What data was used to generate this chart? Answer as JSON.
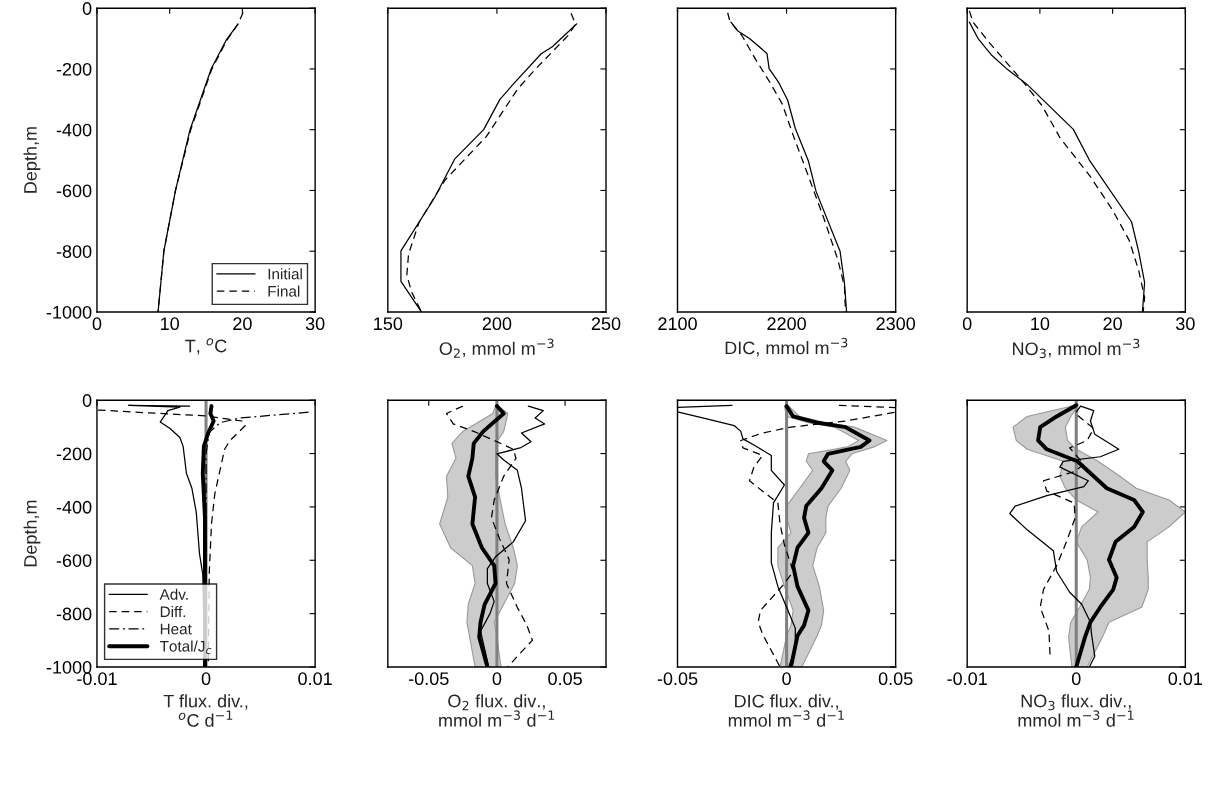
{
  "chart_data": [
    {
      "type": "line",
      "orientation": "horizontal",
      "xlabel": "T, $^{o}$C",
      "ylabel": "Depth,m",
      "xlim": [
        0,
        30
      ],
      "xticks": [
        0,
        10,
        20,
        30
      ],
      "ylim": [
        -1000,
        0
      ],
      "yticks": [
        -1000,
        -800,
        -600,
        -400,
        -200,
        0
      ],
      "legend": "lower right",
      "series": [
        {
          "name": "Initial",
          "color": "#000000",
          "line_style": "solid",
          "x": [
            -52,
            -104,
            -200,
            -400,
            -600,
            -800,
            -1000
          ],
          "values": [
            19.4,
            17.8,
            15.7,
            12.8,
            10.8,
            9.2,
            8.4
          ]
        },
        {
          "name": "Final",
          "color": "#000000",
          "line_style": "dashed",
          "x": [
            -14,
            -52,
            -104,
            -200,
            -400,
            -600,
            -800,
            -1000
          ],
          "values": [
            20.1,
            19.4,
            17.9,
            15.8,
            12.9,
            10.8,
            9.2,
            8.4
          ]
        }
      ]
    },
    {
      "type": "line",
      "orientation": "horizontal",
      "xlabel": "O$_{2}$, mmol m$^{−3}$",
      "xlim": [
        150,
        250
      ],
      "xticks": [
        150,
        200,
        250
      ],
      "ylim": [
        -1000,
        0
      ],
      "yticks": [
        -1000,
        -800,
        -600,
        -400,
        -200,
        0
      ],
      "tick_labels": "x",
      "series": [
        {
          "color": "#000000",
          "line_style": "solid",
          "x": [
            -52,
            -127,
            -150,
            -249,
            -301,
            -399,
            -497,
            -624,
            -799,
            -899,
            -1000
          ],
          "values": [
            236.5,
            225.4,
            220.3,
            207.6,
            201.3,
            194,
            180.6,
            171.4,
            156,
            156,
            165.4
          ]
        },
        {
          "color": "#000000",
          "line_style": "dashed",
          "x": [
            -17,
            -52,
            -87,
            -202,
            -266,
            -422,
            -566,
            -705,
            -809,
            -879,
            -936,
            -1000
          ],
          "values": [
            234,
            236,
            233,
            217.5,
            209.5,
            195.2,
            176.2,
            164.3,
            159.5,
            158.7,
            161,
            165.4
          ]
        }
      ]
    },
    {
      "type": "line",
      "orientation": "horizontal",
      "xlabel": "DIC, mmol m$^{−3}$",
      "xlim": [
        2100,
        2300
      ],
      "xticks": [
        2100,
        2200,
        2300
      ],
      "ylim": [
        -1000,
        0
      ],
      "yticks": [
        -1000,
        -800,
        -600,
        -400,
        -200,
        0
      ],
      "tick_labels": "x",
      "series": [
        {
          "color": "#000000",
          "line_style": "solid",
          "x": [
            -46,
            -74,
            -100,
            -149,
            -199,
            -246,
            -303,
            -396,
            -503,
            -603,
            -800,
            -903,
            -1000
          ],
          "values": [
            2149,
            2155,
            2166,
            2182,
            2184,
            2193,
            2201,
            2208,
            2220,
            2227,
            2249,
            2253,
            2255
          ]
        },
        {
          "color": "#000000",
          "line_style": "dashed",
          "x": [
            -15,
            -43,
            -90,
            -171,
            -246,
            -315,
            -428,
            -553,
            -690,
            -828,
            -915,
            -1000
          ],
          "values": [
            2146,
            2148,
            2159,
            2172,
            2185,
            2196,
            2207,
            2220,
            2234,
            2247,
            2253,
            2254
          ]
        }
      ]
    },
    {
      "type": "line",
      "orientation": "horizontal",
      "xlabel": "NO$_{3}$, mmol m$^{−3}$",
      "xlim": [
        0,
        30
      ],
      "xticks": [
        0,
        10,
        20,
        30
      ],
      "ylim": [
        -1000,
        0
      ],
      "yticks": [
        -1000,
        -800,
        -600,
        -400,
        -200,
        0
      ],
      "tick_labels": "x",
      "series": [
        {
          "color": "#000000",
          "line_style": "solid",
          "x": [
            -46,
            -100,
            -153,
            -203,
            -250,
            -399,
            -500,
            -703,
            -803,
            -903,
            -1000
          ],
          "values": [
            0.3,
            1.5,
            3.3,
            5.6,
            8.2,
            14.6,
            16.8,
            22.6,
            23.6,
            24.4,
            24.1
          ]
        },
        {
          "color": "#000000",
          "line_style": "dashed",
          "x": [
            -9,
            -46,
            -115,
            -234,
            -321,
            -428,
            -553,
            -665,
            -765,
            -865,
            -953,
            -1000
          ],
          "values": [
            0.3,
            0.8,
            3.1,
            7.4,
            10.3,
            12.8,
            16.9,
            20,
            22.3,
            23.6,
            24.4,
            24.2
          ]
        }
      ]
    },
    {
      "type": "line",
      "orientation": "horizontal",
      "xlabel": "T flux. div.,\n$^{o}$C d$^{−1}$",
      "ylabel": "Depth,m",
      "xlim": [
        -0.01,
        0.01
      ],
      "xticks": [
        -0.01,
        0,
        0.01
      ],
      "ylim": [
        -1000,
        0
      ],
      "yticks": [
        -1000,
        -800,
        -600,
        -400,
        -200,
        0
      ],
      "legend": "lower left",
      "ref_lines": [
        {
          "axis": "x",
          "value": 0,
          "color": "#808080"
        }
      ],
      "series": [
        {
          "name": "Adv.",
          "color": "#000000",
          "line_style": "solid",
          "x": [
            -22,
            -19,
            -26,
            -39,
            -82,
            -106,
            -140,
            -173,
            -274,
            -330,
            -419,
            -575,
            -653,
            -1000
          ],
          "values": [
            -0.0015,
            -0.0071,
            -0.0024,
            -0.0035,
            -0.0042,
            -0.0033,
            -0.0024,
            -0.0021,
            -0.0018,
            -0.0013,
            -0.0009,
            -0.0006,
            -0.0003,
            -0.0001
          ]
        },
        {
          "name": "Diff.",
          "color": "#000000",
          "line_style": "dashed",
          "x": [
            -37,
            -59,
            -78,
            -95,
            -151,
            -184,
            -240,
            -352,
            -464,
            -642,
            -1000
          ],
          "values": [
            -0.0099,
            0,
            0.0033,
            0.0036,
            0.0022,
            0.0017,
            0.0014,
            0.0008,
            0.0005,
            0.0003,
            0.0002
          ]
        },
        {
          "name": "Heat",
          "color": "#000000",
          "line_style": "dashdot",
          "x": [
            -45,
            -67,
            -84,
            -120,
            -200,
            -1000
          ],
          "values": [
            0.0094,
            0.0031,
            0.0013,
            0.0003,
            0,
            0
          ]
        },
        {
          "name": "Total/J$_{c}$",
          "color": "#000000",
          "line_style": "solid",
          "x": [
            -22,
            -50,
            -78,
            -123,
            -173,
            -274,
            -441,
            -665,
            -1000
          ],
          "values": [
            0.0005,
            0.0004,
            0.0007,
            0.0002,
            -0.0002,
            -0.0003,
            -0.0001,
            -0.0001,
            -0.0001
          ]
        }
      ]
    },
    {
      "type": "line",
      "orientation": "horizontal",
      "xlabel": "O$_{2}$ flux. div.,\nmmol m$^{−3}$ d$^{−1}$",
      "xlim": [
        -0.08,
        0.08
      ],
      "xticks": [
        -0.05,
        0,
        0.05
      ],
      "ylim": [
        -1000,
        0
      ],
      "yticks": [
        -1000,
        -800,
        -600,
        -400,
        -200,
        0
      ],
      "tick_labels": "x",
      "ref_lines": [
        {
          "axis": "x",
          "value": 0,
          "color": "#808080"
        }
      ],
      "series": [
        {
          "color": "#000000",
          "line_style": "solid",
          "x": [
            -22,
            -39,
            -67,
            -89,
            -123,
            -156,
            -179,
            -201,
            -224,
            -263,
            -330,
            -452,
            -531,
            -587,
            -631,
            -687,
            -754,
            -799,
            -866,
            -1000
          ],
          "values": [
            0.023,
            0.034,
            0.028,
            0.035,
            0.018,
            0.025,
            0.017,
            0,
            0.005,
            0.015,
            0.018,
            0.021,
            0.012,
            -0.001,
            -0.007,
            -0.007,
            -0.002,
            -0.005,
            -0.012,
            -0.006
          ]
        },
        {
          "color": "#000000",
          "line_style": "dashed",
          "x": [
            -22,
            -50,
            -89,
            -117,
            -151,
            -184,
            -218,
            -285,
            -374,
            -441,
            -520,
            -598,
            -687,
            -777,
            -844,
            -900,
            -960,
            -1000
          ],
          "values": [
            -0.025,
            -0.037,
            -0.032,
            -0.017,
            -0.002,
            0.012,
            0.014,
            0.005,
            -0.002,
            -0.004,
            0.002,
            0.009,
            0.007,
            0.015,
            0.022,
            0.026,
            0.015,
            0.008
          ]
        },
        {
          "color": "#000000",
          "line_style": "solid",
          "x": [
            -22,
            -50,
            -117,
            -162,
            -218,
            -285,
            -363,
            -464,
            -553,
            -620,
            -687,
            -765,
            -832,
            -888,
            -1000
          ],
          "values": [
            0,
            0.005,
            -0.01,
            -0.017,
            -0.018,
            -0.021,
            -0.016,
            -0.018,
            -0.011,
            -0.002,
            -0.001,
            -0.009,
            -0.012,
            -0.013,
            -0.007
          ],
          "lower": [
            -0.001,
            -0.003,
            -0.025,
            -0.033,
            -0.03,
            -0.037,
            -0.036,
            -0.042,
            -0.034,
            -0.018,
            -0.016,
            -0.021,
            -0.022,
            -0.02,
            -0.016
          ],
          "upper": [
            0.001,
            0.008,
            0.005,
            -0.001,
            -0.001,
            -0.001,
            0.002,
            0.006,
            0.012,
            0.015,
            0.013,
            0.005,
            -0.002,
            0,
            0.003
          ]
        }
      ]
    },
    {
      "type": "line",
      "orientation": "horizontal",
      "xlabel": "DIC flux. div.,\nmmol m$^{−3}$ d$^{−1}$",
      "xlim": [
        -0.05,
        0.05
      ],
      "xticks": [
        -0.05,
        0,
        0.05
      ],
      "ylim": [
        -1000,
        0
      ],
      "yticks": [
        -1000,
        -800,
        -600,
        -400,
        -200,
        0
      ],
      "tick_labels": "x",
      "ref_lines": [
        {
          "axis": "x",
          "value": 0,
          "color": "#808080"
        }
      ],
      "series": [
        {
          "color": "#000000",
          "line_style": "solid",
          "x": [
            -19,
            -27,
            -44,
            -67,
            -95,
            -117,
            -145,
            -168,
            -207,
            -263,
            -318,
            -385,
            -497,
            -609,
            -698,
            -776,
            -855,
            -930,
            -1000
          ],
          "values": [
            -0.025,
            -0.05,
            -0.05,
            -0.038,
            -0.024,
            -0.021,
            -0.02,
            -0.015,
            -0.007,
            -0.007,
            -0.001,
            -0.006,
            -0.007,
            -0.007,
            -0.004,
            0,
            0.004,
            0.004,
            0.001
          ]
        },
        {
          "color": "#000000",
          "line_style": "dashed",
          "x": [
            -19,
            -28,
            -45,
            -78,
            -101,
            -123,
            -151,
            -179,
            -207,
            -251,
            -302,
            -341,
            -385,
            -464,
            -542,
            -642,
            -687,
            -743,
            -788,
            -832,
            -877,
            -1000
          ],
          "values": [
            0.024,
            0.05,
            0.05,
            0.027,
            0.002,
            -0.011,
            -0.021,
            -0.02,
            -0.011,
            -0.015,
            -0.017,
            -0.011,
            -0.004,
            -0.003,
            -0.001,
            0.003,
            -0.001,
            -0.007,
            -0.012,
            -0.013,
            -0.011,
            -0.003
          ]
        },
        {
          "color": "#000000",
          "line_style": "solid",
          "x": [
            -22,
            -61,
            -84,
            -101,
            -151,
            -175,
            -201,
            -229,
            -263,
            -330,
            -397,
            -441,
            -497,
            -553,
            -620,
            -698,
            -788,
            -844,
            -883,
            -1000
          ],
          "values": [
            0,
            0.003,
            0.014,
            0.027,
            0.038,
            0.034,
            0.019,
            0.017,
            0.021,
            0.016,
            0.009,
            0.008,
            0.01,
            0.005,
            0.003,
            0.005,
            0.01,
            0.008,
            0.005,
            0.002
          ],
          "lower": [
            -0.001,
            0,
            0.01,
            0.022,
            0.033,
            0.028,
            0.01,
            0.009,
            0.012,
            0.006,
            0,
            0,
            0.002,
            -0.004,
            -0.004,
            -0.001,
            0.003,
            0.002,
            0,
            -0.003
          ],
          "upper": [
            0.001,
            0.006,
            0.018,
            0.031,
            0.046,
            0.04,
            0.03,
            0.027,
            0.029,
            0.025,
            0.019,
            0.018,
            0.018,
            0.014,
            0.012,
            0.015,
            0.017,
            0.016,
            0.014,
            0.007
          ]
        }
      ]
    },
    {
      "type": "line",
      "orientation": "horizontal",
      "xlabel": "NO$_{3}$ flux. div.,\nmmol m$^{−3}$ d$^{−1}$",
      "xlim": [
        -0.01,
        0.01
      ],
      "xticks": [
        -0.01,
        0,
        0.01
      ],
      "ylim": [
        -1000,
        0
      ],
      "yticks": [
        -1000,
        -800,
        -600,
        -400,
        -200,
        0
      ],
      "tick_labels": "x",
      "ref_lines": [
        {
          "axis": "x",
          "value": 0,
          "color": "#808080"
        }
      ],
      "series": [
        {
          "color": "#000000",
          "line_style": "solid",
          "x": [
            -22,
            -39,
            -78,
            -128,
            -184,
            -212,
            -229,
            -251,
            -302,
            -324,
            -358,
            -397,
            -425,
            -486,
            -564,
            -642,
            -720,
            -765,
            -832,
            -877,
            -960,
            -1000
          ],
          "values": [
            0.0004,
            0.0016,
            0.0013,
            0.0017,
            0.0039,
            0.0022,
            -0.0012,
            -0.0015,
            0.0011,
            0.0007,
            -0.0027,
            -0.0056,
            -0.0061,
            -0.0045,
            -0.0021,
            -0.0018,
            -0.0006,
            0.0005,
            0.0013,
            0.0014,
            0.0017,
            0.0012
          ]
        },
        {
          "color": "#000000",
          "line_style": "dashed",
          "x": [
            -22,
            -50,
            -106,
            -151,
            -179,
            -240,
            -268,
            -302,
            -341,
            -385,
            -441,
            -531,
            -620,
            -709,
            -776,
            -866,
            -960
          ],
          "values": [
            0.0004,
            -0.0001,
            0.0016,
            0.001,
            -0.0006,
            0.0007,
            -0.0002,
            -0.003,
            -0.0027,
            -0.0002,
            -0.0001,
            -0.0009,
            -0.0018,
            -0.003,
            -0.0033,
            -0.0025,
            -0.0024
          ]
        },
        {
          "color": "#000000",
          "line_style": "solid",
          "x": [
            -19,
            -61,
            -101,
            -151,
            -184,
            -229,
            -285,
            -330,
            -374,
            -419,
            -475,
            -531,
            -598,
            -665,
            -709,
            -776,
            -832,
            -888,
            -1000
          ],
          "values": [
            0,
            -0.0018,
            -0.0033,
            -0.0035,
            -0.0027,
            0.0001,
            0.0016,
            0.0028,
            0.0053,
            0.0061,
            0.0053,
            0.0036,
            0.003,
            0.0037,
            0.0034,
            0.0022,
            0.0013,
            0.0008,
            0
          ],
          "lower": [
            -0.0001,
            -0.0045,
            -0.0058,
            -0.0055,
            -0.0045,
            -0.0012,
            -0.0015,
            -0.001,
            0,
            0.002,
            0.0005,
            0,
            0.001,
            0.0013,
            0.0012,
            0.0003,
            -0.0005,
            -0.0007,
            -0.0004
          ],
          "upper": [
            0.0002,
            -0.0005,
            -0.001,
            -0.0008,
            0,
            0.002,
            0.004,
            0.0055,
            0.0085,
            0.01,
            0.0085,
            0.0065,
            0.0065,
            0.0066,
            0.0066,
            0.006,
            0.003,
            0.0024,
            0.001
          ]
        }
      ]
    }
  ]
}
